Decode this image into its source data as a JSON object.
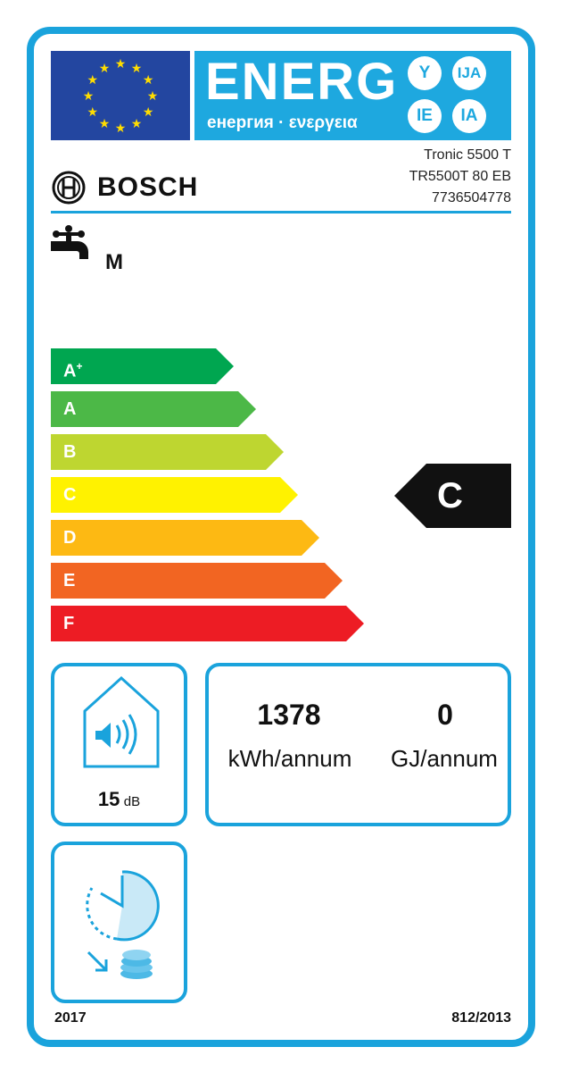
{
  "header": {
    "energy_title": "ENERG",
    "energy_subtitle": "енергия · ενεργεια",
    "lang_badges": [
      "Y",
      "IJA",
      "IE",
      "IA"
    ]
  },
  "supplier": {
    "brand": "BOSCH",
    "model_lines": [
      "Tronic 5500 T",
      "TR5500T 80 EB",
      "7736504778"
    ]
  },
  "load_profile": {
    "icon": "water-tap-icon",
    "value": "M"
  },
  "scale": {
    "classes": [
      {
        "label": "A",
        "sup": "+",
        "color": "#00a650"
      },
      {
        "label": "A",
        "sup": "",
        "color": "#4cb847"
      },
      {
        "label": "B",
        "sup": "",
        "color": "#bed630"
      },
      {
        "label": "C",
        "sup": "",
        "color": "#fff200"
      },
      {
        "label": "D",
        "sup": "",
        "color": "#fdb913"
      },
      {
        "label": "E",
        "sup": "",
        "color": "#f26522"
      },
      {
        "label": "F",
        "sup": "",
        "color": "#ed1c24"
      }
    ],
    "rating": "C"
  },
  "noise": {
    "value": "15",
    "unit": "dB"
  },
  "consumption": {
    "electric_value": "1378",
    "electric_unit": "kWh/annum",
    "fuel_value": "0",
    "fuel_unit": "GJ/annum"
  },
  "smart_control": {
    "icon": "clock-coins-icon"
  },
  "footer": {
    "year": "2017",
    "regulation": "812/2013"
  },
  "colors": {
    "frame": "#1aa3dc",
    "eu_blue": "#2346a0",
    "energy_blue": "#1ea8df"
  }
}
